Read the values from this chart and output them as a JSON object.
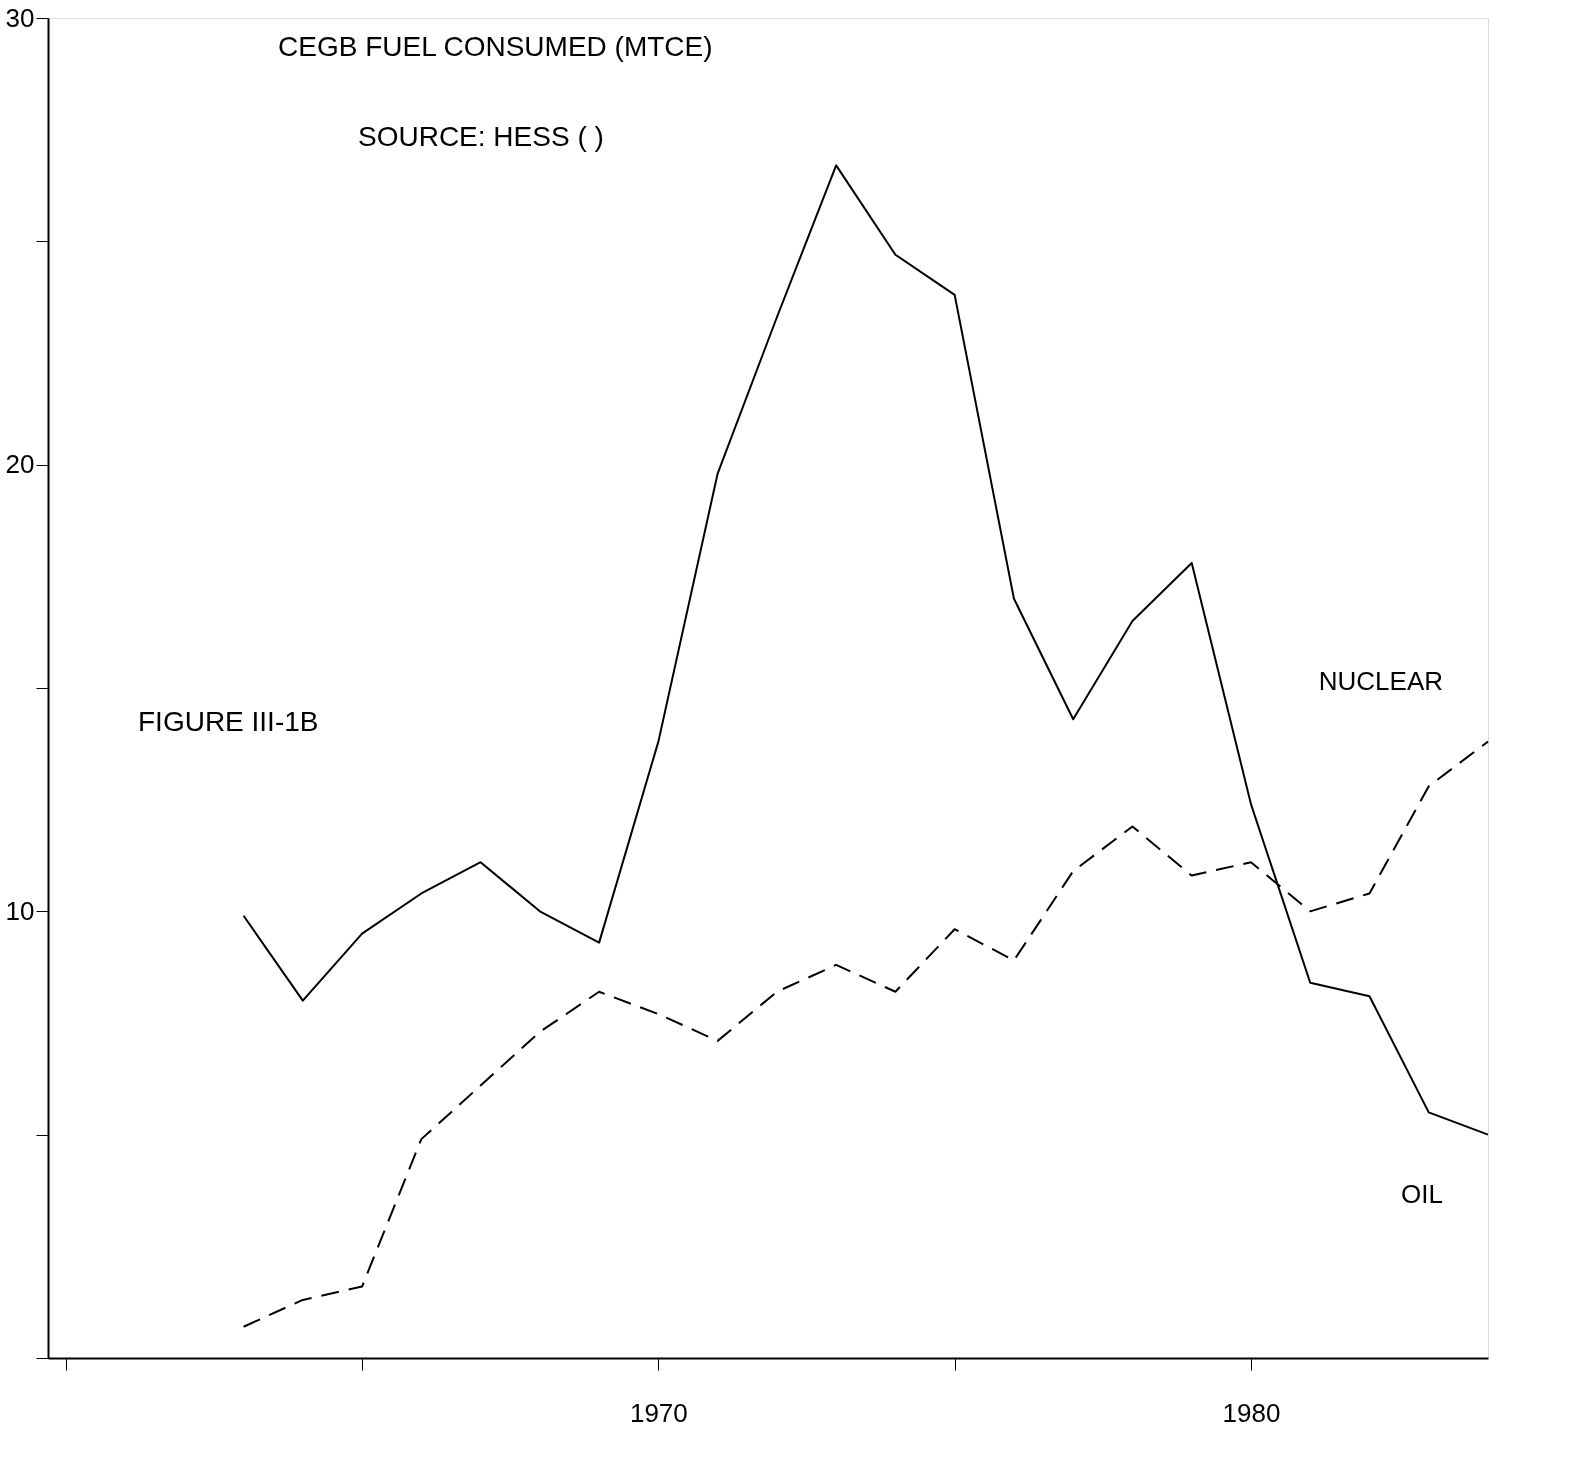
{
  "chart_data": {
    "type": "line",
    "title": "CEGB FUEL CONSUMED  (MTCE)",
    "subtitle": "SOURCE: HESS (  )",
    "annotations": [
      "FIGURE III-1B"
    ],
    "x": [
      1963,
      1964,
      1965,
      1966,
      1967,
      1968,
      1969,
      1970,
      1971,
      1972,
      1973,
      1974,
      1975,
      1976,
      1977,
      1978,
      1979,
      1980,
      1981,
      1982,
      1983,
      1984
    ],
    "series": [
      {
        "name": "OIL",
        "color": "#000000",
        "line_style": "solid",
        "values": [
          9.9,
          8.0,
          9.5,
          10.4,
          11.1,
          10.0,
          9.3,
          13.8,
          19.8,
          23.3,
          26.7,
          24.7,
          23.8,
          17.0,
          14.3,
          16.5,
          17.8,
          12.4,
          8.4,
          8.1,
          5.5,
          5.0
        ]
      },
      {
        "name": "NUCLEAR",
        "color": "#000000",
        "line_style": "dashed",
        "values": [
          0.7,
          1.3,
          1.6,
          4.9,
          6.1,
          7.3,
          8.2,
          7.7,
          7.1,
          8.2,
          8.8,
          8.2,
          9.6,
          8.9,
          10.9,
          11.9,
          10.8,
          11.1,
          10.0,
          10.4,
          12.8,
          13.8
        ]
      }
    ],
    "xlim": [
      1959.7,
      1984
    ],
    "xticks": [
      {
        "value": 1960,
        "label": null
      },
      {
        "value": 1965,
        "label": null
      },
      1970,
      {
        "value": 1975,
        "label": null
      },
      1980
    ],
    "ylim": [
      0,
      30
    ],
    "yticks": [
      {
        "value": 0,
        "label": null
      },
      {
        "value": 5,
        "label": null
      },
      10,
      {
        "value": 15,
        "label": null
      },
      20,
      {
        "value": 25,
        "label": null
      },
      30
    ],
    "grid": false,
    "marker": "none"
  }
}
